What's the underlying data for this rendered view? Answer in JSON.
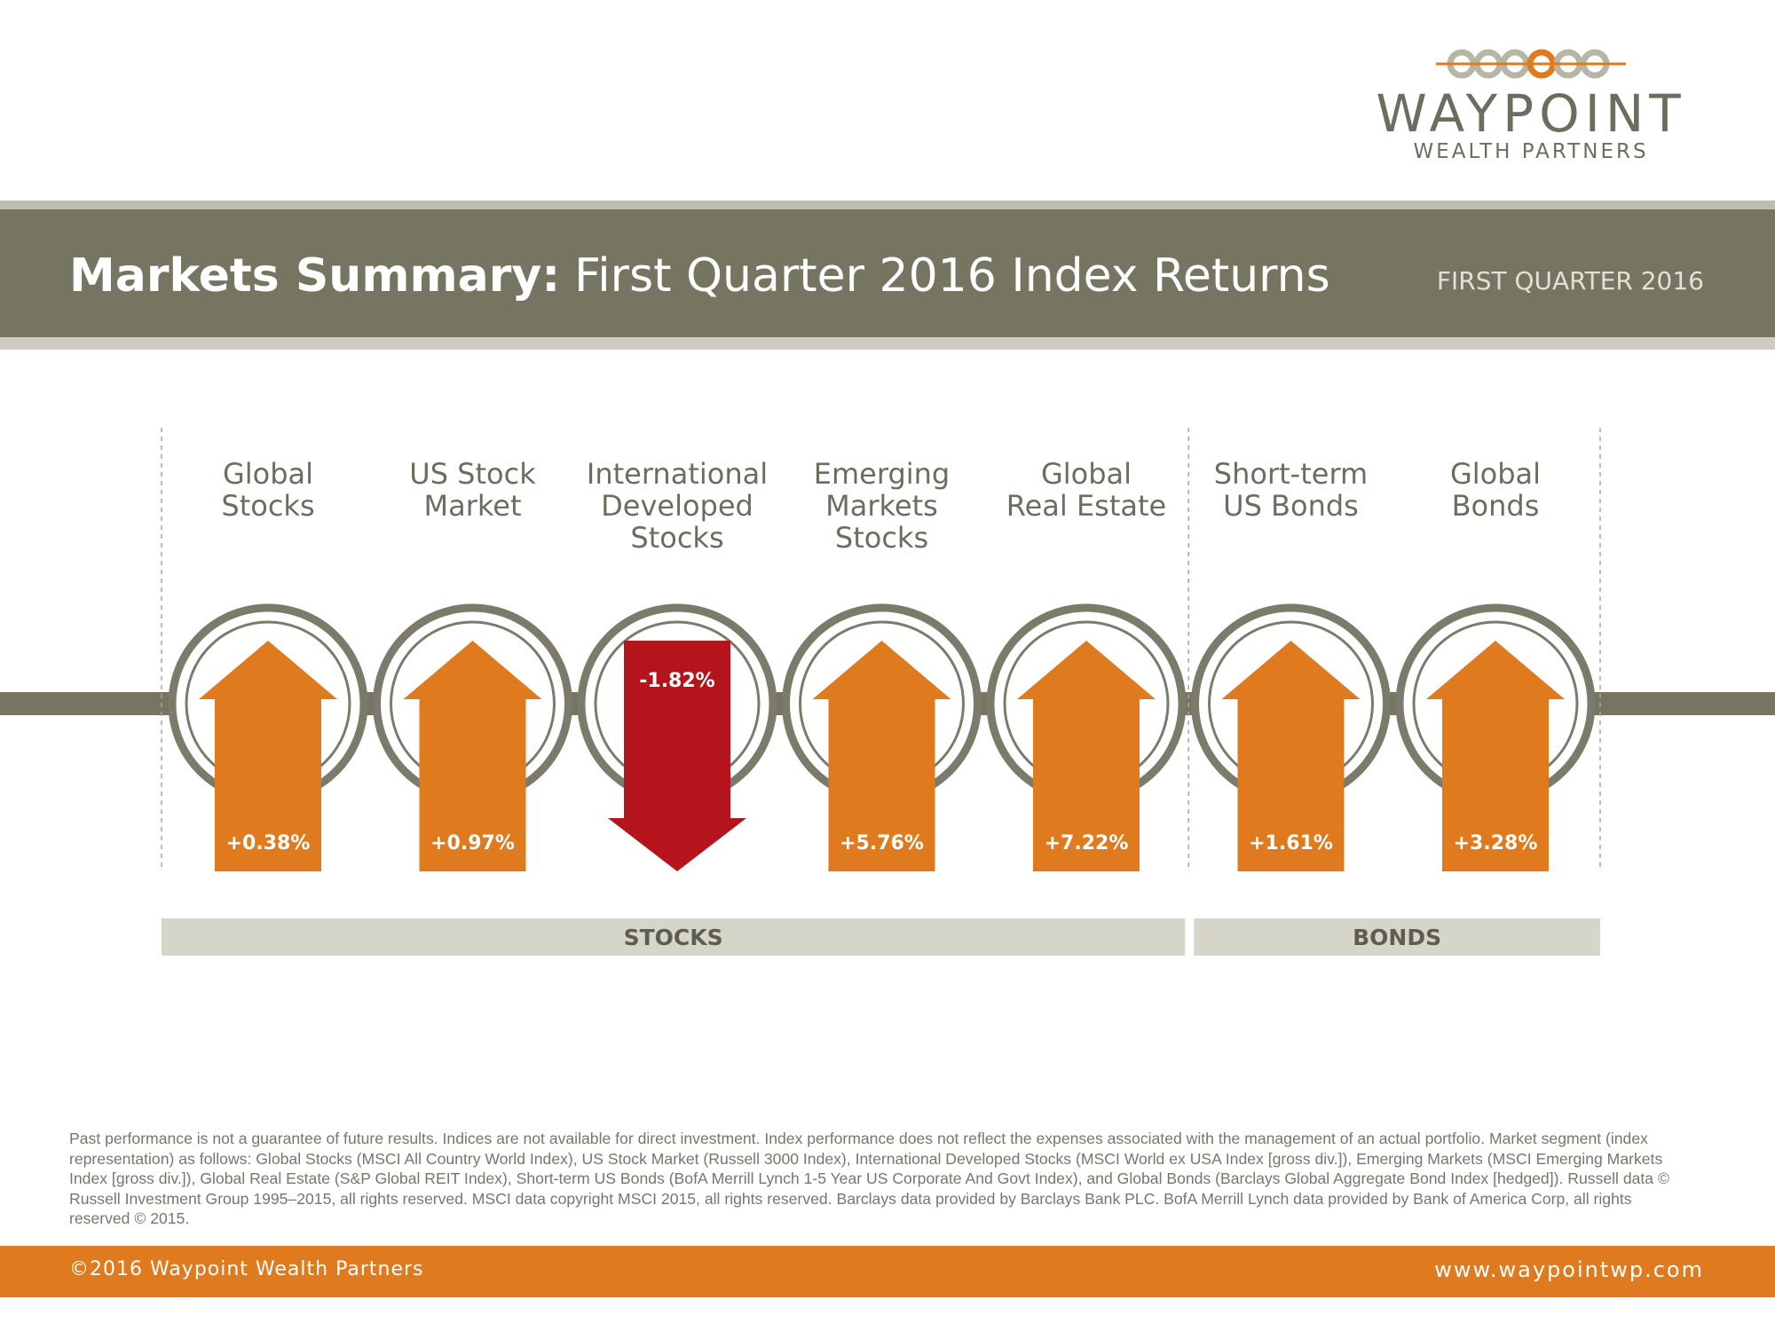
{
  "brand": {
    "name": "WAYPOINT",
    "subname": "WEALTH PARTNERS",
    "colors": {
      "orange": "#df7a1e",
      "red": "#b6141c",
      "olive": "#767562",
      "ring": "#7b7a6b",
      "group_band": "#d6d5ca"
    }
  },
  "header": {
    "title_bold": "Markets Summary:",
    "title_rest": "First Quarter 2016 Index Returns",
    "period": "FIRST QUARTER 2016"
  },
  "chart_data": {
    "type": "bar",
    "title": "Markets Summary: First Quarter 2016 Index Returns",
    "unit": "%",
    "categories": [
      [
        "Global",
        "Stocks"
      ],
      [
        "US Stock",
        "Market"
      ],
      [
        "International",
        "Developed",
        "Stocks"
      ],
      [
        "Emerging",
        "Markets",
        "Stocks"
      ],
      [
        "Global",
        "Real Estate"
      ],
      [
        "Short-term",
        "US Bonds"
      ],
      [
        "Global",
        "Bonds"
      ]
    ],
    "values": [
      0.38,
      0.97,
      -1.82,
      5.76,
      7.22,
      1.61,
      3.28
    ],
    "value_labels": [
      "+0.38%",
      "+0.97%",
      "-1.82%",
      "+5.76%",
      "+7.22%",
      "+1.61%",
      "+3.28%"
    ],
    "groups": [
      {
        "label": "STOCKS",
        "count": 5
      },
      {
        "label": "BONDS",
        "count": 2
      }
    ]
  },
  "disclaimer": "Past performance is not a guarantee of future results. Indices are not available for direct investment. Index performance does not reflect the expenses associated with the management of an actual portfolio. Market segment (index representation) as follows: Global Stocks (MSCI All Country World Index), US Stock Market (Russell 3000 Index), International Developed Stocks (MSCI World ex USA Index [gross div.]), Emerging Markets (MSCI Emerging Markets Index [gross div.]), Global Real Estate (S&P Global REIT Index), Short-term US Bonds (BofA Merrill Lynch 1-5 Year US Corporate And Govt Index), and Global Bonds (Barclays Global Aggregate Bond Index [hedged]). Russell data © Russell Investment Group 1995–2015, all rights reserved. MSCI data copyright MSCI 2015, all rights reserved. Barclays data provided by Barclays Bank PLC. BofA Merrill Lynch data provided by Bank of America Corp, all rights reserved © 2015.",
  "footer": {
    "copyright": "©2016 Waypoint Wealth Partners",
    "url": "www.waypointwp.com"
  }
}
